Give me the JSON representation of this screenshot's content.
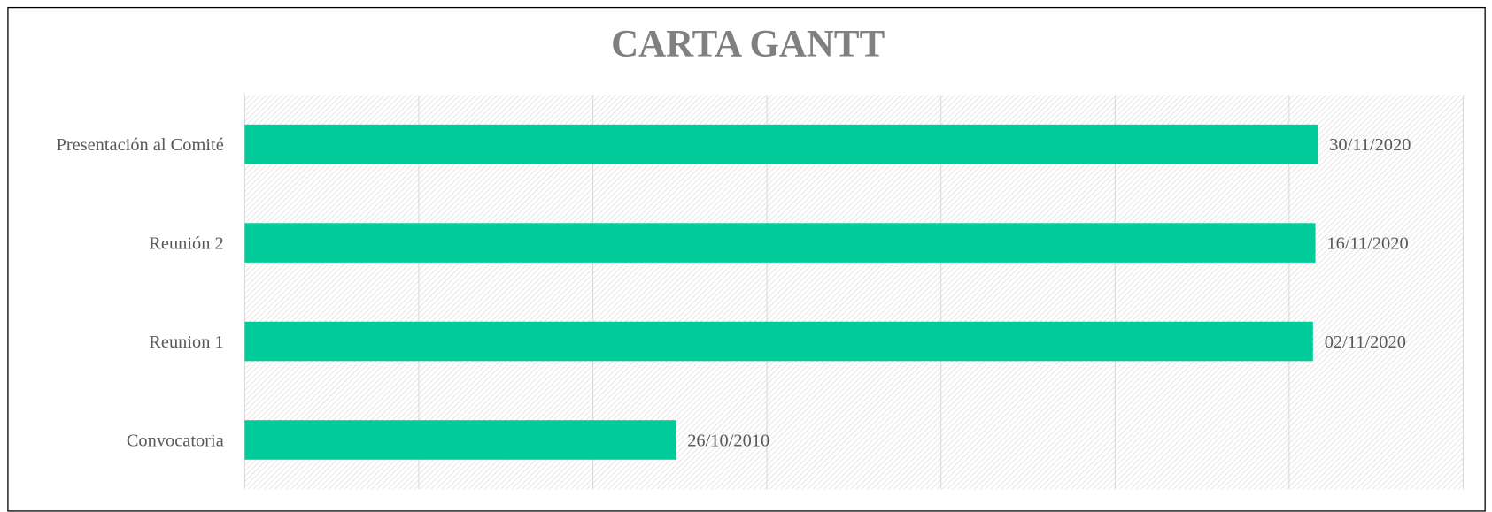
{
  "chart_data": {
    "type": "bar",
    "orientation": "horizontal",
    "title": "CARTA GANTT",
    "categories": [
      "Presentación al Comité",
      "Reunión 2",
      "Reunion 1",
      "Convocatoria"
    ],
    "values": [
      44165,
      44151,
      44137,
      40477
    ],
    "value_labels": [
      "30/11/2020",
      "16/11/2020",
      "02/11/2020",
      "26/10/2010"
    ],
    "color": "#02cb9a",
    "xlim": [
      38000,
      45000
    ],
    "xticks": [
      38000,
      39000,
      40000,
      41000,
      42000,
      43000,
      44000,
      45000
    ],
    "grid": true
  }
}
